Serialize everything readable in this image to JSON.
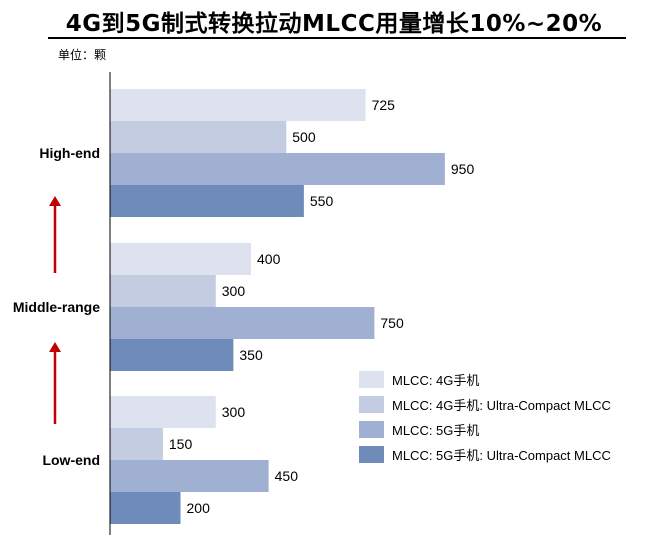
{
  "title": "4G到5G制式转换拉动MLCC用量增长10%~20%",
  "unit_label": "单位：颗",
  "colors": {
    "series": [
      "#dde2ee",
      "#c3cce0",
      "#9fb0d2",
      "#6f8bb9"
    ],
    "arrow": "#c00000",
    "axis": "#000000"
  },
  "chart_data": {
    "type": "bar",
    "orientation": "horizontal",
    "title": "4G到5G制式转换拉动MLCC用量增长10%~20%",
    "categories": [
      "High-end",
      "Middle-range",
      "Low-end"
    ],
    "series": [
      {
        "name": "MLCC: 4G手机",
        "values": [
          725,
          400,
          300
        ]
      },
      {
        "name": "MLCC: 4G手机: Ultra-Compact MLCC",
        "values": [
          500,
          300,
          150
        ]
      },
      {
        "name": "MLCC: 5G手机",
        "values": [
          950,
          750,
          450
        ]
      },
      {
        "name": "MLCC: 5G手机: Ultra-Compact MLCC",
        "values": [
          550,
          350,
          200
        ]
      }
    ],
    "xlim": [
      0,
      1000
    ],
    "grid": false,
    "legend_position": "bottom-right",
    "data_labels": true
  }
}
